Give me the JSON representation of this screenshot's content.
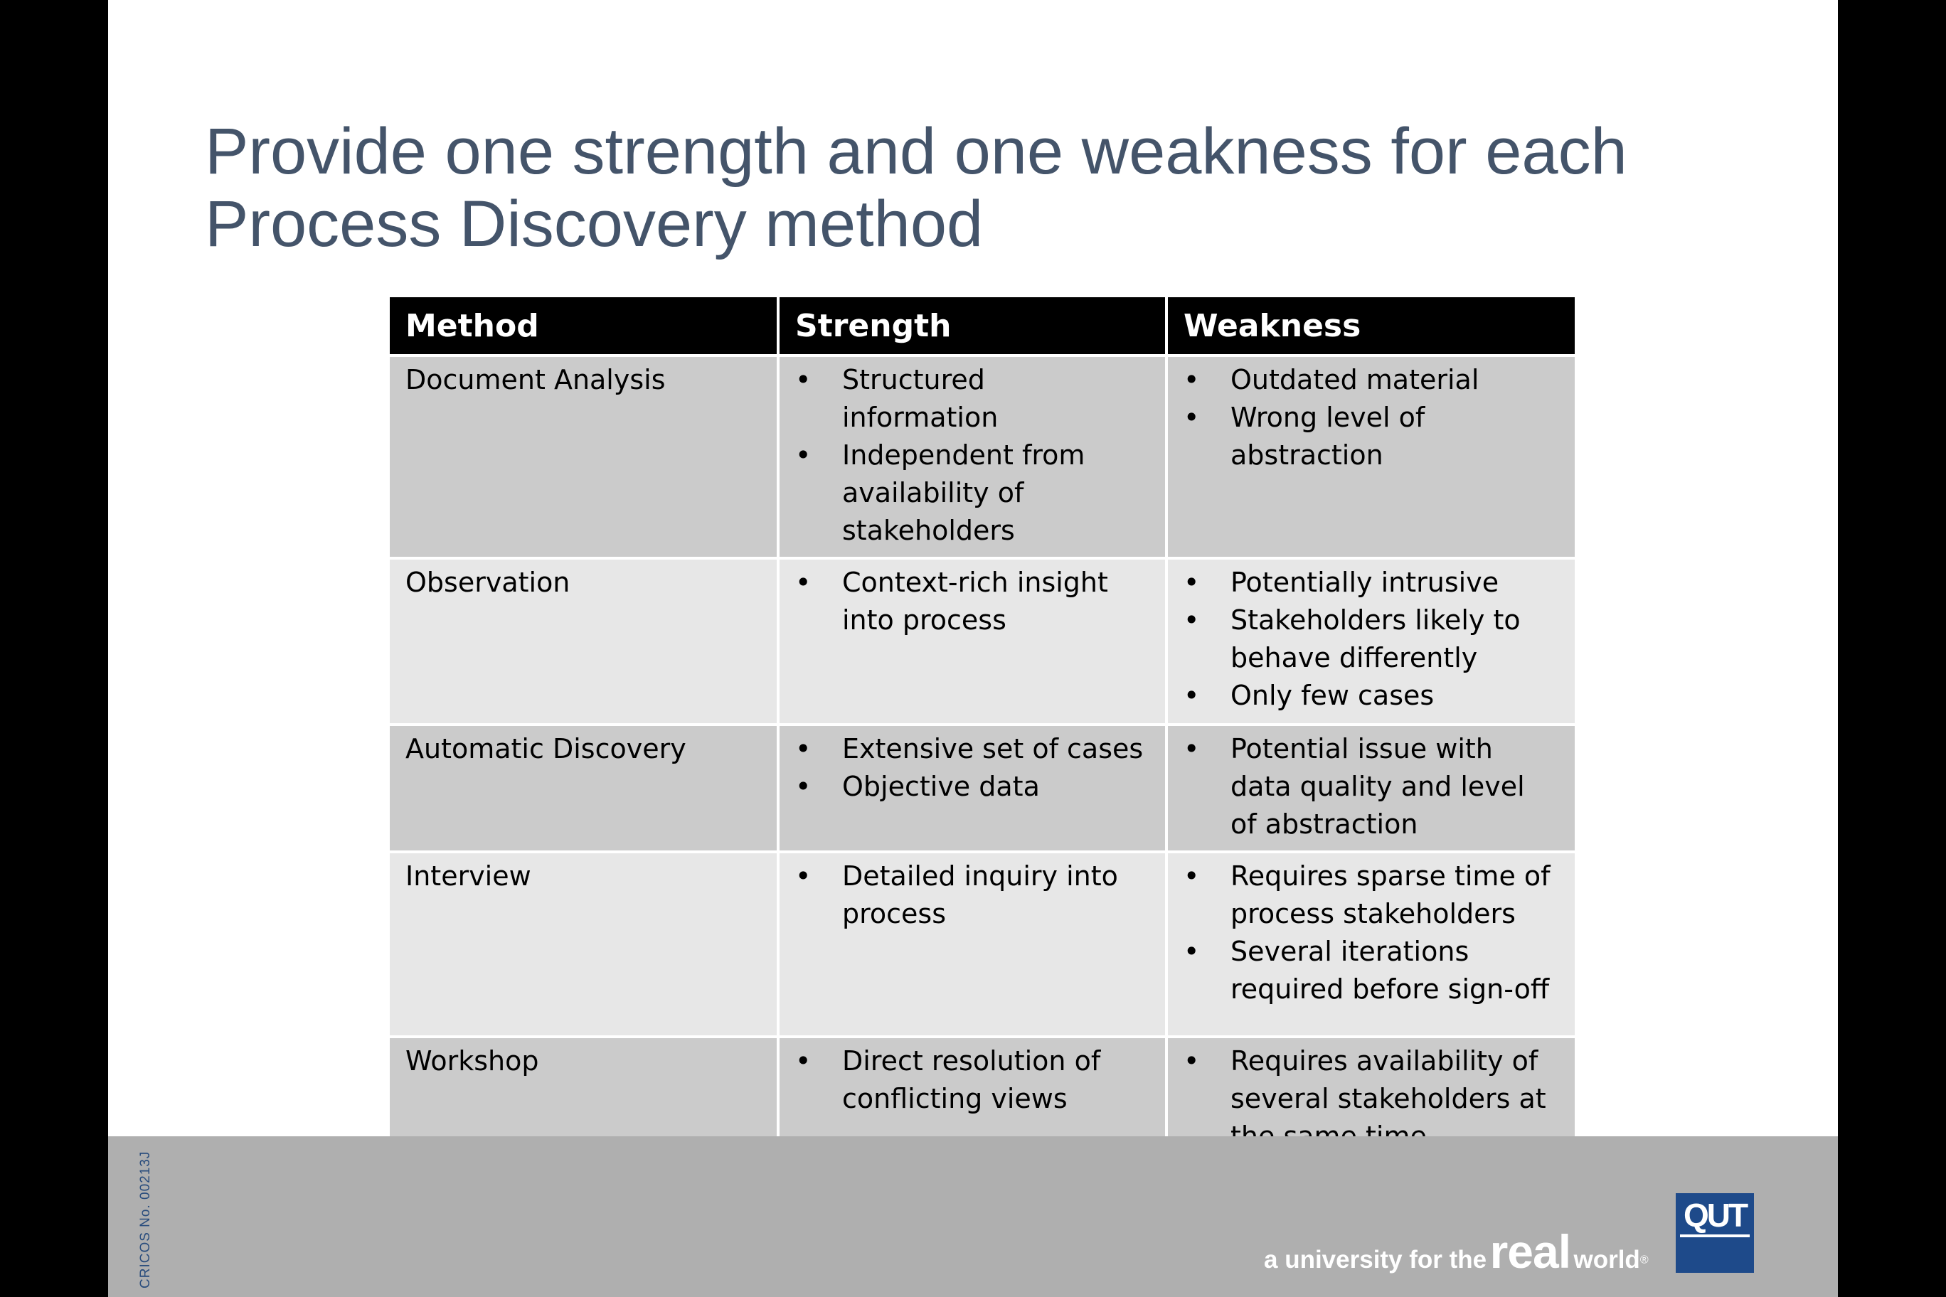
{
  "title": {
    "line1": "Provide one strength and one weakness for each",
    "line2": "Process Discovery method"
  },
  "table": {
    "headers": [
      "Method",
      "Strength",
      "Weakness"
    ],
    "rows": [
      {
        "method": "Document Analysis",
        "strengths": [
          "Structured information",
          "Independent from availability of stakeholders"
        ],
        "weaknesses": [
          "Outdated material",
          "Wrong level of abstraction"
        ]
      },
      {
        "method": "Observation",
        "strengths": [
          "Context-rich insight into process"
        ],
        "weaknesses": [
          "Potentially intrusive",
          "Stakeholders likely to behave differently",
          "Only few cases"
        ]
      },
      {
        "method": "Automatic Discovery",
        "strengths": [
          "Extensive set of cases",
          "Objective data"
        ],
        "weaknesses": [
          "Potential issue with data quality and level of abstraction"
        ]
      },
      {
        "method": "Interview",
        "strengths": [
          "Detailed inquiry into process"
        ],
        "weaknesses": [
          "Requires sparse time of process stakeholders",
          "Several iterations required before sign-off"
        ]
      },
      {
        "method": "Workshop",
        "strengths": [
          "Direct resolution of conflicting views"
        ],
        "weaknesses": [
          "Requires availability of several stakeholders at the same time"
        ]
      }
    ]
  },
  "footer": {
    "cricos": "CRICOS No. 00213J",
    "tagline_prefix": "a university for the",
    "tagline_real": "real",
    "tagline_world": "world",
    "tagline_mark": "®",
    "logo": "QUT"
  },
  "colors": {
    "title": "#44546a",
    "header_bg": "#000000",
    "row_odd": "#cbcbcb",
    "row_even": "#e7e7e7",
    "footer_bg": "#afafaf",
    "logo_bg": "#1e4a8a"
  }
}
